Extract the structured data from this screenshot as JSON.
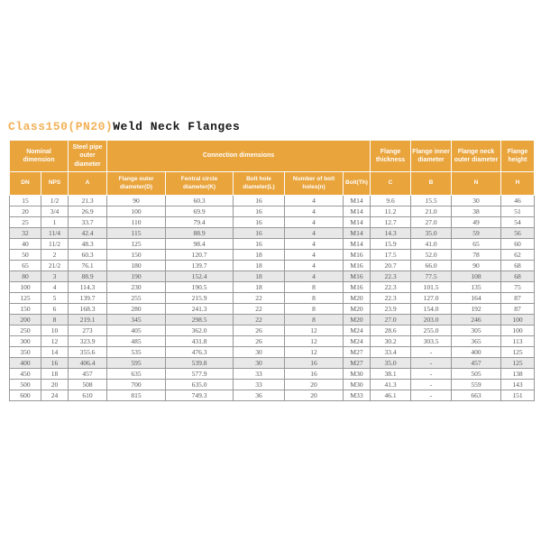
{
  "page": {
    "title_accent": "Class150(PN20)",
    "title_main": "Weld Neck Flanges"
  },
  "colors": {
    "header_bg": "#e9a43c",
    "header_text": "#ffffff",
    "title_accent": "#f2b157",
    "title_main": "#161616",
    "shaded_row_bg": "#e8e8e8",
    "data_text": "#555555",
    "grid_line": "#979797"
  },
  "table": {
    "groups": [
      {
        "label": "Nominal dimension",
        "colspan": 2
      },
      {
        "label": "Steel pipe outer diameter",
        "colspan": 1
      },
      {
        "label": "Connection dimensions",
        "colspan": 5
      },
      {
        "label": "Flange thickness",
        "colspan": 1
      },
      {
        "label": "Flange inner diameter",
        "colspan": 1
      },
      {
        "label": "Flange neck outer diameter",
        "colspan": 1
      },
      {
        "label": "Flange height",
        "colspan": 1
      }
    ],
    "columns": [
      "DN",
      "NPS",
      "A",
      "Flange outer diameter(D)",
      "Fentral circle diameter(K)",
      "Bolt hole diameter(L)",
      "Number of bolt holes(n)",
      "Bolt(Th)",
      "C",
      "B",
      "N",
      "H"
    ],
    "shaded_rows": [
      3,
      7,
      11,
      15
    ],
    "rows": [
      [
        "15",
        "1/2",
        "21.3",
        "90",
        "60.3",
        "16",
        "4",
        "M14",
        "9.6",
        "15.5",
        "30",
        "46"
      ],
      [
        "20",
        "3/4",
        "26.9",
        "100",
        "69.9",
        "16",
        "4",
        "M14",
        "11.2",
        "21.0",
        "38",
        "51"
      ],
      [
        "25",
        "1",
        "33.7",
        "110",
        "79.4",
        "16",
        "4",
        "M14",
        "12.7",
        "27.0",
        "49",
        "54"
      ],
      [
        "32",
        "11/4",
        "42.4",
        "115",
        "88.9",
        "16",
        "4",
        "M14",
        "14.3",
        "35.0",
        "59",
        "56"
      ],
      [
        "40",
        "11/2",
        "48.3",
        "125",
        "98.4",
        "16",
        "4",
        "M14",
        "15.9",
        "41.0",
        "65",
        "60"
      ],
      [
        "50",
        "2",
        "60.3",
        "150",
        "120.7",
        "18",
        "4",
        "M16",
        "17.5",
        "52.0",
        "78",
        "62"
      ],
      [
        "65",
        "21/2",
        "76.1",
        "180",
        "139.7",
        "18",
        "4",
        "M16",
        "20.7",
        "66.0",
        "90",
        "68"
      ],
      [
        "80",
        "3",
        "88.9",
        "190",
        "152.4",
        "18",
        "4",
        "M16",
        "22.3",
        "77.5",
        "108",
        "68"
      ],
      [
        "100",
        "4",
        "114.3",
        "230",
        "190.5",
        "18",
        "8",
        "M16",
        "22.3",
        "101.5",
        "135",
        "75"
      ],
      [
        "125",
        "5",
        "139.7",
        "255",
        "215.9",
        "22",
        "8",
        "M20",
        "22.3",
        "127.0",
        "164",
        "87"
      ],
      [
        "150",
        "6",
        "168.3",
        "280",
        "241.3",
        "22",
        "8",
        "M20",
        "23.9",
        "154.0",
        "192",
        "87"
      ],
      [
        "200",
        "8",
        "219.1",
        "345",
        "298.5",
        "22",
        "8",
        "M20",
        "27.0",
        "203.0",
        "246",
        "100"
      ],
      [
        "250",
        "10",
        "273",
        "405",
        "362.0",
        "26",
        "12",
        "M24",
        "28.6",
        "255.0",
        "305",
        "100"
      ],
      [
        "300",
        "12",
        "323.9",
        "485",
        "431.8",
        "26",
        "12",
        "M24",
        "30.2",
        "303.5",
        "365",
        "113"
      ],
      [
        "350",
        "14",
        "355.6",
        "535",
        "476.3",
        "30",
        "12",
        "M27",
        "33.4",
        "-",
        "400",
        "125"
      ],
      [
        "400",
        "16",
        "406.4",
        "595",
        "539.8",
        "30",
        "16",
        "M27",
        "35.0",
        "-",
        "457",
        "125"
      ],
      [
        "450",
        "18",
        "457",
        "635",
        "577.9",
        "33",
        "16",
        "M30",
        "38.1",
        "-",
        "505",
        "138"
      ],
      [
        "500",
        "20",
        "508",
        "700",
        "635.0",
        "33",
        "20",
        "M30",
        "41.3",
        "-",
        "559",
        "143"
      ],
      [
        "600",
        "24",
        "610",
        "815",
        "749.3",
        "36",
        "20",
        "M33",
        "46.1",
        "-",
        "663",
        "151"
      ]
    ]
  }
}
